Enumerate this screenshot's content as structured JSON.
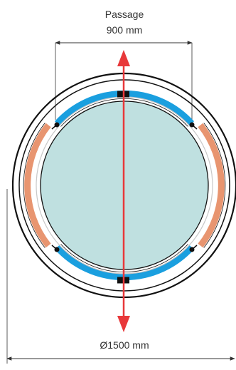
{
  "passage": {
    "label": "Passage",
    "value": "900 mm"
  },
  "diameter": {
    "value": "Ø1500 mm"
  },
  "colors": {
    "outline": "#111111",
    "inner_ring": "#c8c8c8",
    "door_panel": "#bfe0e0",
    "sliding_segment": "#1a9fdf",
    "fixed_segment": "#e89570",
    "axis_arrow": "#e8383a",
    "dimension_line": "#333333",
    "fixture": "#111111"
  }
}
